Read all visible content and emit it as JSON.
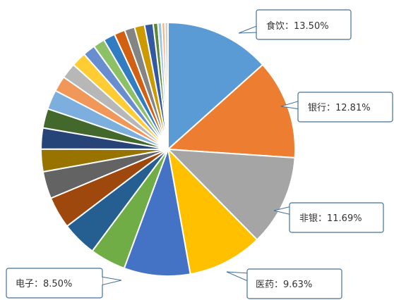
{
  "chart_data": {
    "type": "pie",
    "title": "",
    "legend": "none",
    "start_angle_deg": 0,
    "direction": "clockwise",
    "slices": [
      {
        "label": "食饮",
        "value": 13.5,
        "display": "食饮：13.50%",
        "color": "#5B9BD5"
      },
      {
        "label": "银行",
        "value": 12.81,
        "display": "银行：12.81%",
        "color": "#ED7D31"
      },
      {
        "label": "非银",
        "value": 11.69,
        "display": "非银：11.69%",
        "color": "#A5A5A5"
      },
      {
        "label": "医药",
        "value": 9.63,
        "display": "医药：9.63%",
        "color": "#FFC000"
      },
      {
        "label": "电子",
        "value": 8.5,
        "display": "电子：8.50%",
        "color": "#4472C4"
      },
      {
        "value": 4.6,
        "color": "#70AD47"
      },
      {
        "value": 4.5,
        "color": "#255E91"
      },
      {
        "value": 4.1,
        "color": "#9E480E"
      },
      {
        "value": 3.5,
        "color": "#636363"
      },
      {
        "value": 2.9,
        "color": "#997300"
      },
      {
        "value": 2.7,
        "color": "#264478"
      },
      {
        "value": 2.5,
        "color": "#43682B"
      },
      {
        "value": 2.5,
        "color": "#7CAFDD"
      },
      {
        "value": 2.0,
        "color": "#F1975A"
      },
      {
        "value": 2.0,
        "color": "#B7B7B7"
      },
      {
        "value": 1.9,
        "color": "#FFCD33"
      },
      {
        "value": 1.6,
        "color": "#698ED0"
      },
      {
        "value": 1.5,
        "color": "#8CC168"
      },
      {
        "value": 1.5,
        "color": "#327DC2"
      },
      {
        "value": 1.4,
        "color": "#D26012"
      },
      {
        "value": 1.3,
        "color": "#848484"
      },
      {
        "value": 1.3,
        "color": "#CC9A00"
      },
      {
        "value": 1.1,
        "color": "#335AA1"
      },
      {
        "value": 0.6,
        "color": "#5A8A39"
      },
      {
        "value": 0.5,
        "color": "#9DC3E6"
      },
      {
        "value": 0.4,
        "color": "#F4B183"
      },
      {
        "value": 0.4,
        "color": "#D0D0D0"
      }
    ]
  }
}
